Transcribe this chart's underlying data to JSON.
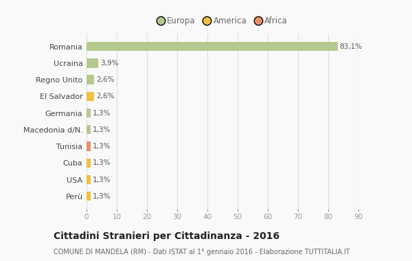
{
  "categories": [
    "Romania",
    "Ucraina",
    "Regno Unito",
    "El Salvador",
    "Germania",
    "Macedonia d/N.",
    "Tunisia",
    "Cuba",
    "USA",
    "Perù"
  ],
  "values": [
    83.1,
    3.9,
    2.6,
    2.6,
    1.3,
    1.3,
    1.3,
    1.3,
    1.3,
    1.3
  ],
  "labels": [
    "83,1%",
    "3,9%",
    "2,6%",
    "2,6%",
    "1,3%",
    "1,3%",
    "1,3%",
    "1,3%",
    "1,3%",
    "1,3%"
  ],
  "colors": [
    "#b5c98e",
    "#b5c98e",
    "#b5c98e",
    "#f0c040",
    "#b5c98e",
    "#b5c98e",
    "#e8906a",
    "#f0c040",
    "#f0c040",
    "#f0c040"
  ],
  "legend_labels": [
    "Europa",
    "America",
    "Africa"
  ],
  "legend_colors": [
    "#b5c98e",
    "#f0c040",
    "#e8906a"
  ],
  "title": "Cittadini Stranieri per Cittadinanza - 2016",
  "subtitle": "COMUNE DI MANDELA (RM) - Dati ISTAT al 1° gennaio 2016 - Elaborazione TUTTITALIA.IT",
  "xlim": [
    0,
    90
  ],
  "xticks": [
    0,
    10,
    20,
    30,
    40,
    50,
    60,
    70,
    80,
    90
  ],
  "background_color": "#f9f9f9",
  "grid_color": "#dddddd",
  "bar_height": 0.55
}
